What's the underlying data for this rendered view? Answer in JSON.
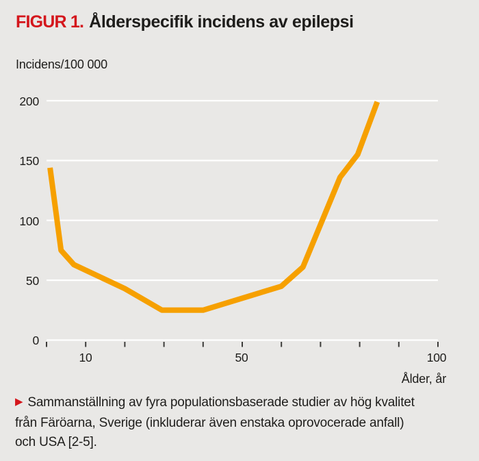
{
  "figure": {
    "label": "FIGUR 1.",
    "title": "Ålderspecifik incidens av epilepsi"
  },
  "y_axis_title": "Incidens/100 000",
  "x_axis_title": "Ålder, år",
  "caption": {
    "bullet": "▶",
    "text": "Sammanställning av fyra populationsbaserade studier av hög kvalitet från Färöarna, Sverige (inkluderar även enstaka oprovocerade anfall) och USA [2-5]."
  },
  "colors": {
    "background": "#e9e8e6",
    "line": "#f6a000",
    "gridline": "#ffffff",
    "tick": "#3c3b39",
    "accent_red": "#d4161c",
    "text": "#1e1d1b"
  },
  "chart_data": {
    "type": "line",
    "title": "Ålderspecifik incidens av epilepsi",
    "xlabel": "Ålder, år",
    "ylabel": "Incidens/100 000",
    "xlim": [
      0,
      100
    ],
    "ylim": [
      0,
      200
    ],
    "grid": "horizontal-white",
    "legend": "none",
    "ytick_values": [
      200,
      150,
      100,
      50,
      0
    ],
    "ytick_labels": [
      "200",
      "150",
      "100",
      "50",
      "0"
    ],
    "xtick_labeled": [
      {
        "label": "10",
        "value": 10
      },
      {
        "label": "50",
        "value": 50
      },
      {
        "label": "100",
        "value": 100
      }
    ],
    "minor_xtick_step": 10,
    "series": [
      {
        "name": "Incidens av epilepsi",
        "points": [
          [
            0.9,
            144
          ],
          [
            3.7,
            75
          ],
          [
            7,
            63
          ],
          [
            20,
            43
          ],
          [
            29.5,
            25
          ],
          [
            40,
            25
          ],
          [
            60,
            45
          ],
          [
            65.5,
            61
          ],
          [
            75,
            136
          ],
          [
            79.5,
            155
          ],
          [
            84.5,
            199
          ]
        ]
      }
    ]
  }
}
